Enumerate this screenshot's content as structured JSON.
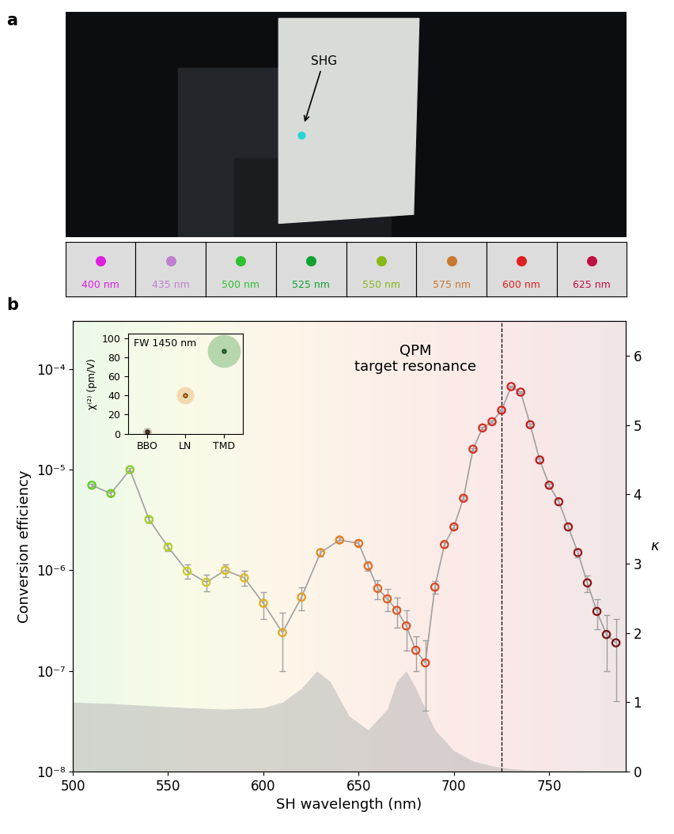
{
  "panel_a": {
    "label": "a",
    "annotation": "SHG",
    "spot_color": "#2ad4d8",
    "swatches": [
      {
        "label": "400 nm",
        "color": "#e01ee0"
      },
      {
        "label": "435 nm",
        "color": "#c080d0"
      },
      {
        "label": "500 nm",
        "color": "#30c030"
      },
      {
        "label": "525 nm",
        "color": "#10a030"
      },
      {
        "label": "550 nm",
        "color": "#88b818"
      },
      {
        "label": "575 nm",
        "color": "#c87830"
      },
      {
        "label": "600 nm",
        "color": "#e02020"
      },
      {
        "label": "625 nm",
        "color": "#c01040"
      }
    ]
  },
  "chart_data": [
    {
      "type": "line",
      "panel_label": "b",
      "x_label": "SH wavelength (nm)",
      "y_label": "Conversion efficiency",
      "y2_label": "κ",
      "annotation": "QPM\ntarget resonance",
      "reference_line_x": 725,
      "log": "y",
      "xlim": [
        500,
        790
      ],
      "xticks": [
        500,
        550,
        600,
        650,
        700,
        750
      ],
      "ylim": [
        1e-08,
        0.0003
      ],
      "yticks": [
        {
          "value": 1e-08,
          "label": "10⁻⁸"
        },
        {
          "value": 1e-07,
          "label": "10⁻⁷"
        },
        {
          "value": 1e-06,
          "label": "10⁻⁶"
        },
        {
          "value": 1e-05,
          "label": "10⁻⁵"
        },
        {
          "value": 0.0001,
          "label": "10⁻⁴"
        }
      ],
      "y2lim": [
        0,
        6.5
      ],
      "y2ticks": [
        0,
        1,
        2,
        3,
        4,
        5,
        6
      ],
      "series": [
        {
          "type": "scatter",
          "marker": "o",
          "color": "#a0a0a0",
          "x": [
            510,
            520,
            530,
            540,
            550,
            560,
            570,
            580,
            590,
            600,
            610,
            620,
            630,
            640,
            650,
            655,
            660,
            665,
            670,
            675,
            680,
            685,
            690,
            695,
            700,
            705,
            710,
            715,
            720,
            725,
            730,
            735,
            740,
            745,
            750,
            755,
            760,
            765,
            770,
            775,
            780,
            785
          ],
          "values": [
            7e-06,
            5.8e-06,
            1e-05,
            3.2e-06,
            1.7e-06,
            9.8e-07,
            7.6e-07,
            1e-06,
            8.4e-07,
            4.7e-07,
            2.4e-07,
            5.4e-07,
            1.5e-06,
            2e-06,
            1.85e-06,
            1.1e-06,
            6.6e-07,
            5.2e-07,
            4e-07,
            2.8e-07,
            1.6e-07,
            1.2e-07,
            6.8e-07,
            1.8e-06,
            2.7e-06,
            5.2e-06,
            1.6e-05,
            2.6e-05,
            3e-05,
            3.9e-05,
            6.7e-05,
            5.9e-05,
            2.8e-05,
            1.25e-05,
            7e-06,
            4.8e-06,
            2.7e-06,
            1.5e-06,
            7.5e-07,
            3.9e-07,
            2.3e-07,
            1.9e-07
          ],
          "errors": [
            3e-07,
            3e-07,
            4e-07,
            2e-07,
            1.5e-07,
            1.6e-07,
            1.4e-07,
            1.5e-07,
            1.4e-07,
            1.4e-07,
            1.4e-07,
            1.4e-07,
            1.2e-07,
            1e-07,
            1e-07,
            1.2e-07,
            1.4e-07,
            1.3e-07,
            1.3e-07,
            1.2e-07,
            6e-08,
            8e-08,
            1e-07,
            1e-07,
            1.2e-07,
            2e-07,
            4e-07,
            6e-07,
            6e-07,
            8e-07,
            1.2e-06,
            1.2e-06,
            8e-07,
            4e-07,
            3e-07,
            3e-07,
            2e-07,
            1.5e-07,
            1.4e-07,
            1.3e-07,
            1.3e-07,
            1.4e-07
          ]
        },
        {
          "type": "area",
          "axis": "y2",
          "color": "#b8b8b8",
          "x": [
            500,
            520,
            540,
            560,
            580,
            600,
            610,
            620,
            628,
            635,
            645,
            655,
            665,
            670,
            675,
            680,
            690,
            700,
            710,
            720,
            730,
            740,
            760,
            790
          ],
          "values": [
            1.0,
            0.98,
            0.95,
            0.92,
            0.9,
            0.92,
            1.0,
            1.2,
            1.45,
            1.3,
            0.8,
            0.6,
            0.9,
            1.3,
            1.45,
            1.2,
            0.6,
            0.3,
            0.15,
            0.08,
            0.04,
            0.02,
            0.01,
            0.0
          ]
        }
      ]
    },
    {
      "type": "scatter",
      "title": "FW 1450 nm",
      "categories": [
        "BBO",
        "LN",
        "TMD"
      ],
      "values": [
        2,
        40,
        87
      ],
      "colors": [
        "#603020",
        "#e8902a",
        "#1a8a2a"
      ],
      "y_label": "χ⁽²⁾ (pm/V)",
      "ylim": [
        0,
        105
      ],
      "yticks": [
        0,
        20,
        40,
        60,
        80,
        100
      ]
    }
  ]
}
